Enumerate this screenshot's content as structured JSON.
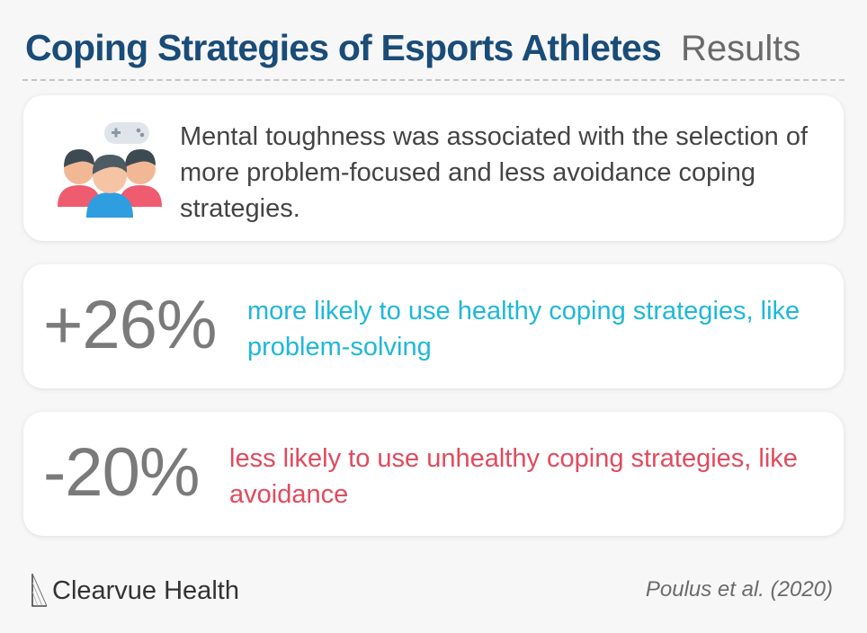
{
  "header": {
    "title": "Coping Strategies of Esports Athletes",
    "subtitle": "Results"
  },
  "summary": {
    "icon": "gamers-with-controller-icon",
    "text": "Mental toughness was associated with the selection of more problem-focused and less avoidance coping strategies."
  },
  "stats": [
    {
      "value": "+26%",
      "text": "more likely to use healthy coping strategies, like problem-solving",
      "color": "#1fb8d8"
    },
    {
      "value": "-20%",
      "text": "less likely to use unhealthy coping strategies, like avoidance",
      "color": "#e24a5d"
    }
  ],
  "footer": {
    "brand": "Clearvue Health",
    "logo_icon": "clearvue-logo-icon",
    "citation": "Poulus et al. (2020)"
  },
  "colors": {
    "title": "#1a4c78",
    "background": "#f7f7f7"
  }
}
